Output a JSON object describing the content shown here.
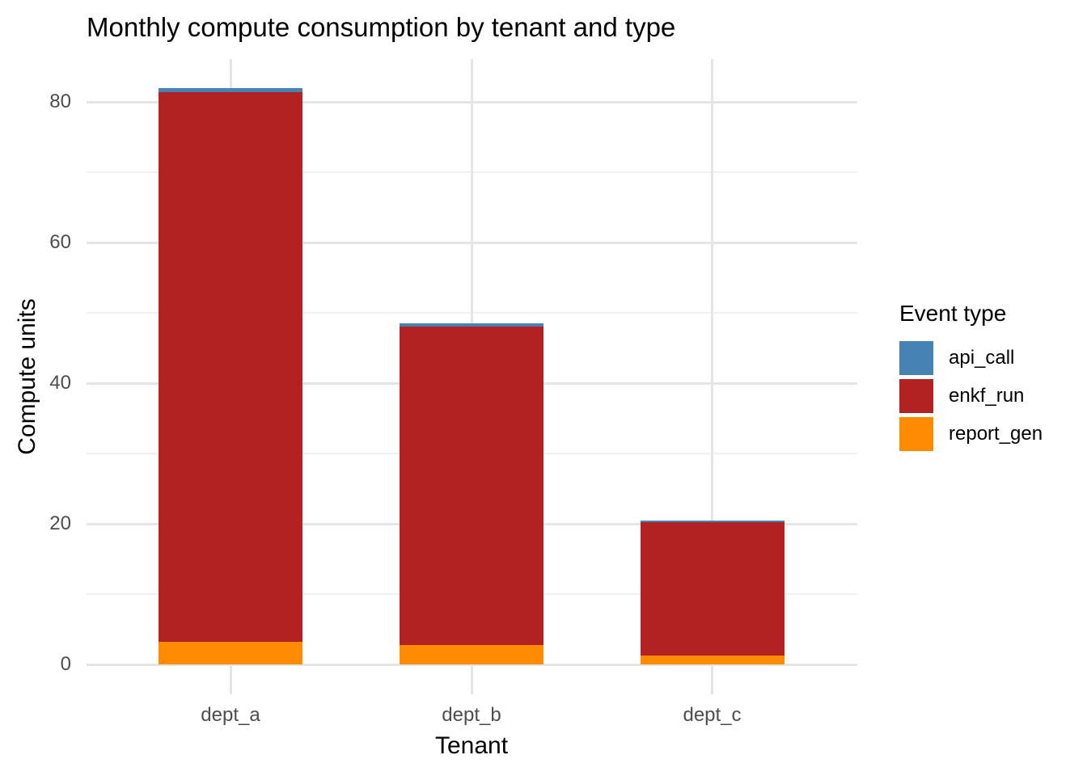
{
  "chart_data": {
    "type": "bar",
    "stacked": true,
    "title": "Monthly compute consumption by tenant and type",
    "xlabel": "Tenant",
    "ylabel": "Compute units",
    "categories": [
      "dept_a",
      "dept_b",
      "dept_c"
    ],
    "series": [
      {
        "name": "report_gen",
        "color": "#FF8C00",
        "values": [
          3.2,
          2.8,
          1.3
        ]
      },
      {
        "name": "enkf_run",
        "color": "#B22222",
        "values": [
          78.2,
          45.25,
          18.9
        ]
      },
      {
        "name": "api_call",
        "color": "#4682B4",
        "values": [
          0.6,
          0.45,
          0.25
        ]
      }
    ],
    "totals": [
      82.0,
      48.5,
      20.45
    ],
    "y_axis": {
      "major_ticks": [
        0,
        20,
        40,
        60,
        80
      ],
      "minor_ticks": [
        10,
        30,
        50,
        70
      ],
      "ylim": [
        0,
        86
      ]
    },
    "legend": {
      "title": "Event type",
      "position": "right",
      "order": [
        "api_call",
        "enkf_run",
        "report_gen"
      ]
    },
    "grid": {
      "major_color": "#e5e5e5",
      "minor_color": "#f0f0f0",
      "background": "#ffffff"
    },
    "text_colors": {
      "title": "#000000",
      "tick_labels": "#4d4d4d",
      "axis_titles": "#000000"
    }
  }
}
